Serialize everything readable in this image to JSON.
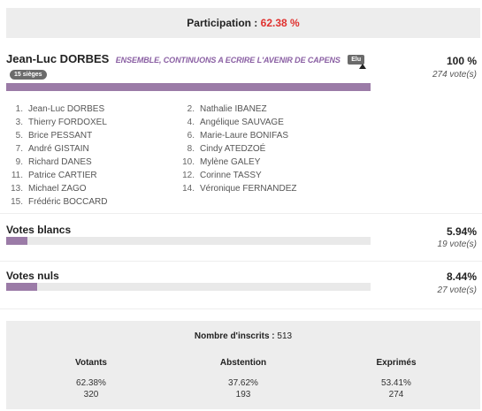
{
  "participation": {
    "label": "Participation :",
    "value": "62.38 %"
  },
  "candidate": {
    "name": "Jean-Luc DORBES",
    "list_name": "ENSEMBLE, CONTINUONS A ECRIRE L'AVENIR DE CAPENS",
    "elected_badge": "Elu",
    "seats_badge": "15 sièges",
    "percent": "100 %",
    "votes": "274 vote(s)",
    "bar_fraction": 1.0,
    "members_left": [
      {
        "num": "1.",
        "name": "Jean-Luc DORBES"
      },
      {
        "num": "3.",
        "name": "Thierry FORDOXEL"
      },
      {
        "num": "5.",
        "name": "Brice PESSANT"
      },
      {
        "num": "7.",
        "name": "André GISTAIN"
      },
      {
        "num": "9.",
        "name": "Richard DANES"
      },
      {
        "num": "11.",
        "name": "Patrice CARTIER"
      },
      {
        "num": "13.",
        "name": "Michael ZAGO"
      },
      {
        "num": "15.",
        "name": "Frédéric BOCCARD"
      }
    ],
    "members_right": [
      {
        "num": "2.",
        "name": "Nathalie IBANEZ"
      },
      {
        "num": "4.",
        "name": "Angélique SAUVAGE"
      },
      {
        "num": "6.",
        "name": "Marie-Laure BONIFAS"
      },
      {
        "num": "8.",
        "name": "Cindy ATEDZOÉ"
      },
      {
        "num": "10.",
        "name": "Mylène GALEY"
      },
      {
        "num": "12.",
        "name": "Corinne TASSY"
      },
      {
        "num": "14.",
        "name": "Véronique FERNANDEZ"
      }
    ]
  },
  "blank_votes": {
    "label": "Votes blancs",
    "percent": "5.94%",
    "votes": "19 vote(s)",
    "bar_fraction": 0.0594
  },
  "null_votes": {
    "label": "Votes nuls",
    "percent": "8.44%",
    "votes": "27 vote(s)",
    "bar_fraction": 0.0844
  },
  "summary": {
    "registered_label": "Nombre d'inscrits :",
    "registered_value": "513",
    "voters": {
      "label": "Votants",
      "percent": "62.38%",
      "count": "320"
    },
    "abstention": {
      "label": "Abstention",
      "percent": "37.62%",
      "count": "193"
    },
    "expressed": {
      "label": "Exprimés",
      "percent": "53.41%",
      "count": "274"
    }
  },
  "colors": {
    "bar": "#9b7ba7",
    "participation_value": "#e0312f",
    "list_name": "#8a5fa3"
  }
}
